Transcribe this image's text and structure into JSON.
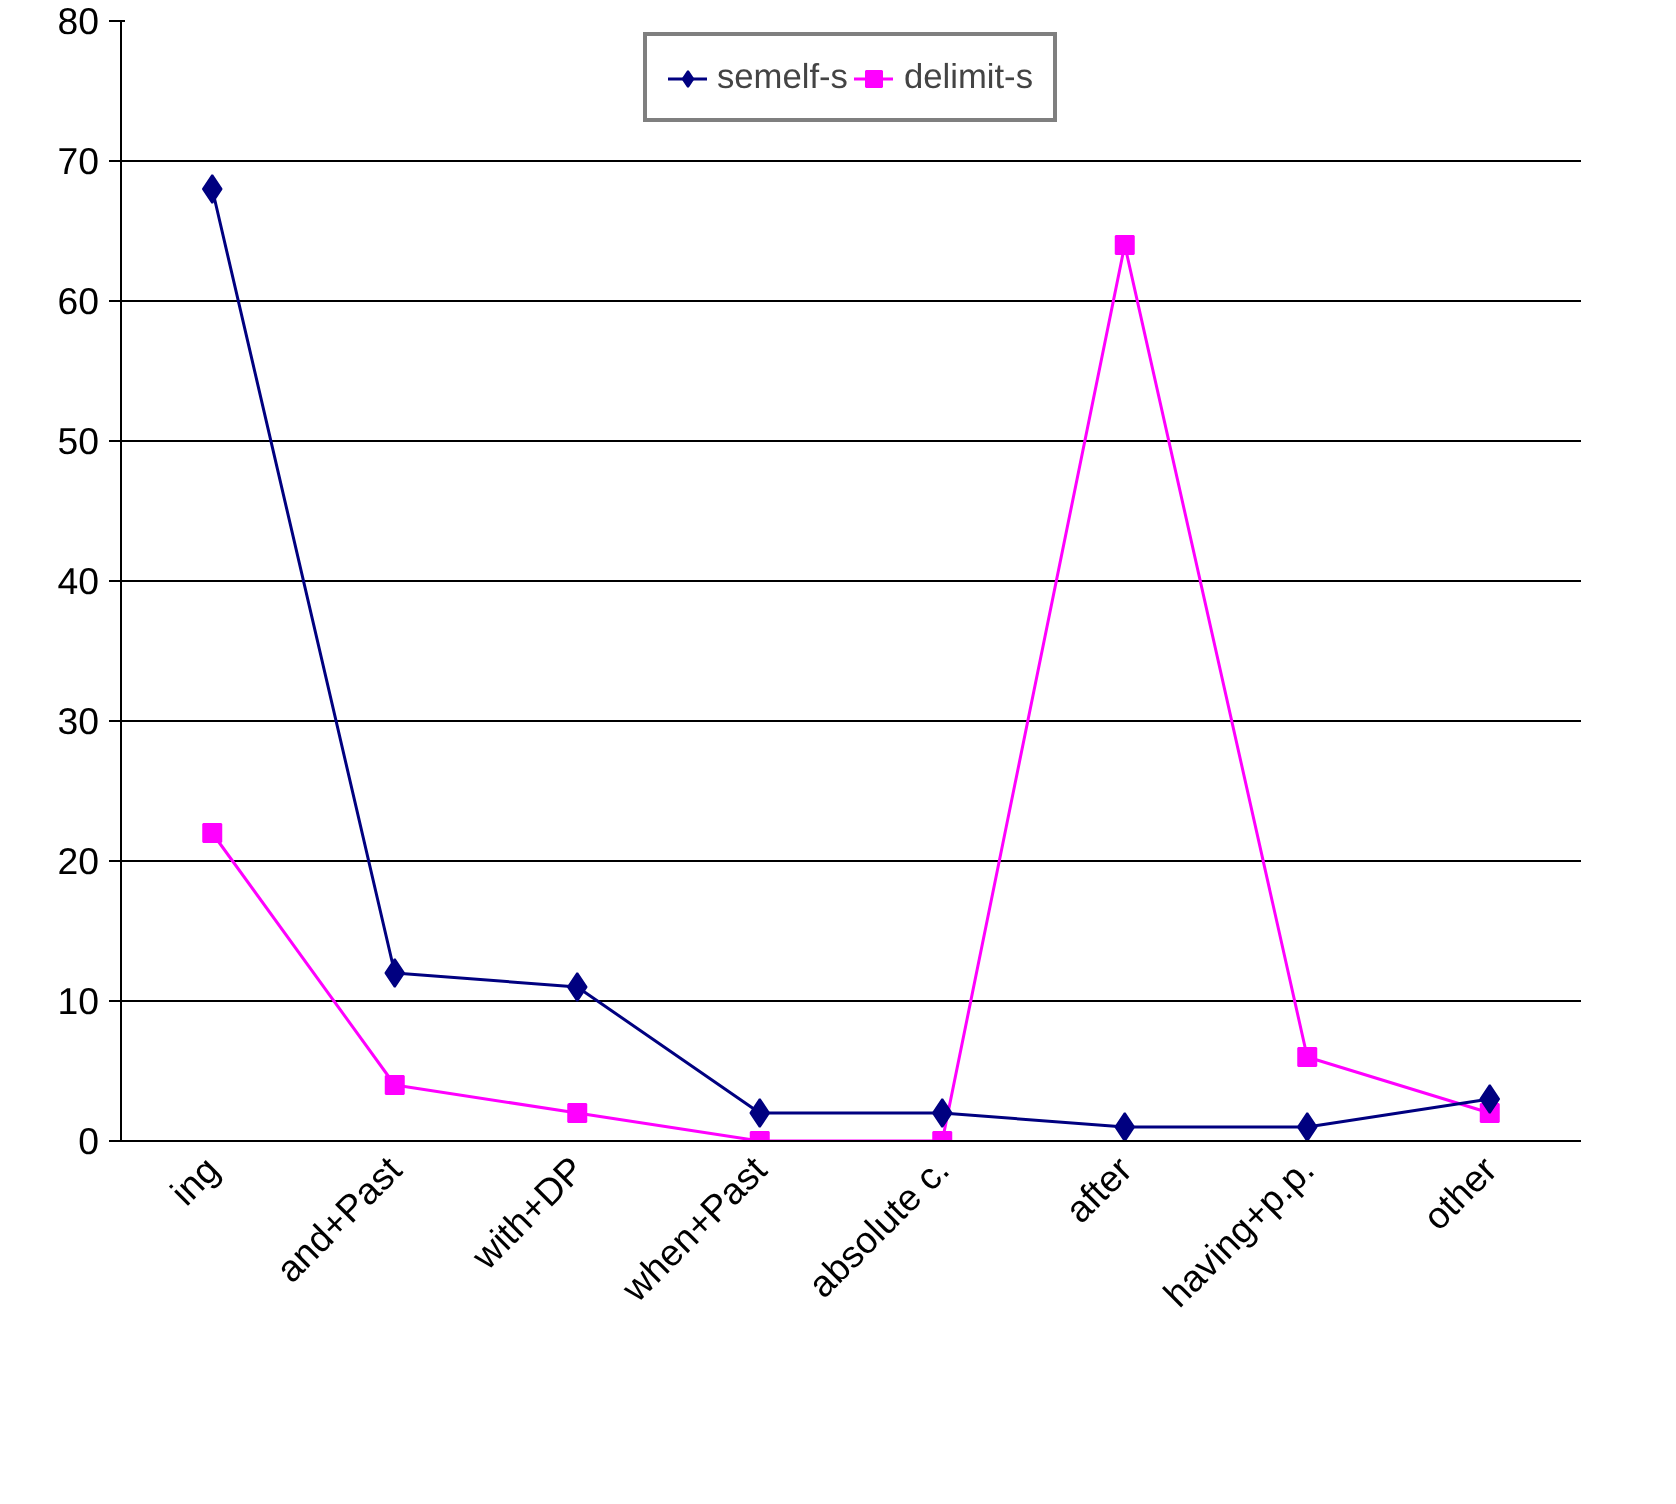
{
  "chart_data": {
    "type": "line",
    "categories": [
      "ing",
      "and+Past",
      "with+DP",
      "when+Past",
      "absolute c.",
      "after",
      "having+p.p.",
      "other"
    ],
    "series": [
      {
        "name": "semelf-s",
        "color": "#000080",
        "marker": "diamond",
        "values": [
          68,
          12,
          11,
          2,
          2,
          1,
          1,
          3
        ]
      },
      {
        "name": "delimit-s",
        "color": "#ff00ff",
        "marker": "square",
        "values": [
          22,
          4,
          2,
          0,
          0,
          64,
          6,
          2
        ]
      }
    ],
    "ylim": [
      0,
      80
    ],
    "yticks": [
      0,
      10,
      20,
      30,
      40,
      50,
      60,
      70,
      80
    ],
    "grid": "y",
    "legend": "top"
  }
}
